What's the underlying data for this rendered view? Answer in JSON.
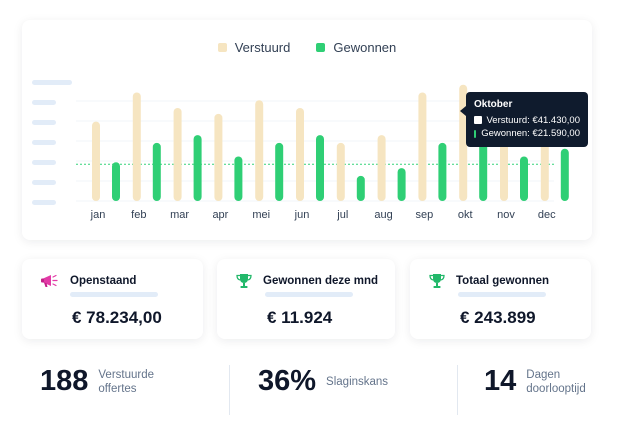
{
  "legend": {
    "sent_label": "Verstuurd",
    "won_label": "Gewonnen"
  },
  "colors": {
    "sent": "#f6e5c1",
    "won": "#2fcf75",
    "tooltip_bg": "#0f1b2d",
    "skeleton": "#e2ecf8",
    "average_line": "#34d37a",
    "trophy": "#22b86a",
    "megaphone": "#e23aa6"
  },
  "chart_data": {
    "type": "bar",
    "categories": [
      "jan",
      "feb",
      "mar",
      "apr",
      "mei",
      "jun",
      "jul",
      "aug",
      "sep",
      "okt",
      "nov",
      "dec"
    ],
    "series": [
      {
        "name": "Verstuurd",
        "values": [
          41,
          56,
          48,
          45,
          52,
          48,
          30,
          34,
          56,
          60,
          39,
          47
        ]
      },
      {
        "name": "Gewonnen",
        "values": [
          20,
          30,
          34,
          23,
          30,
          34,
          13,
          17,
          30,
          37,
          23,
          27
        ]
      }
    ],
    "average": 19,
    "ylim": [
      0,
      64
    ],
    "grid": true,
    "legend_position": "top-center"
  },
  "tooltip": {
    "title": "Oktober",
    "sent_text": "Verstuurd: €41.430,00",
    "won_text": "Gewonnen: €21.590,00"
  },
  "cards": [
    {
      "title": "Openstaand",
      "value": "€ 78.234,00",
      "icon": "megaphone-icon"
    },
    {
      "title": "Gewonnen deze mnd",
      "value": "€ 11.924",
      "icon": "trophy-icon"
    },
    {
      "title": "Totaal gewonnen",
      "value": "€ 243.899",
      "icon": "trophy-icon"
    }
  ],
  "kpis": [
    {
      "number": "188",
      "label_line1": "Verstuurde",
      "label_line2": "offertes"
    },
    {
      "number": "36%",
      "label_line1": "Slaginskans",
      "label_line2": ""
    },
    {
      "number": "14",
      "label_line1": "Dagen",
      "label_line2": "doorlooptijd"
    }
  ]
}
